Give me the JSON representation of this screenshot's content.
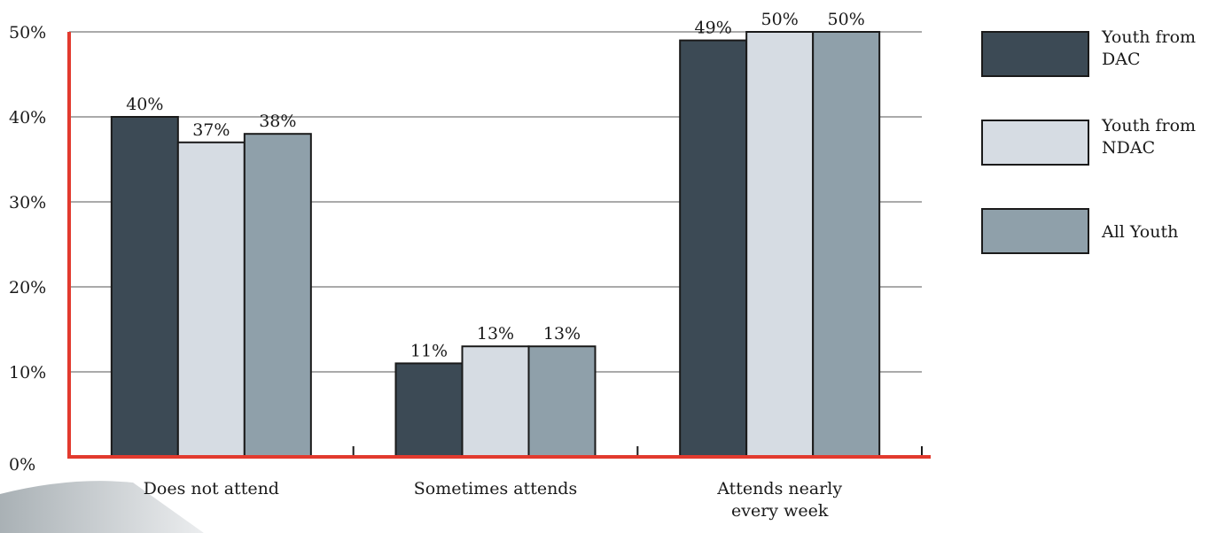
{
  "chart_data": {
    "type": "bar",
    "categories": [
      [
        "Does not attend"
      ],
      [
        "Sometimes attends"
      ],
      [
        "Attends nearly",
        "every week"
      ]
    ],
    "series": [
      {
        "name": [
          "Youth from",
          "DAC"
        ],
        "values": [
          40,
          11,
          49
        ],
        "labels": [
          "40%",
          "11%",
          "49%"
        ],
        "color": "#3c4a55"
      },
      {
        "name": [
          "Youth from",
          "NDAC"
        ],
        "values": [
          37,
          13,
          50
        ],
        "labels": [
          "37%",
          "13%",
          "50%"
        ],
        "color": "#d6dce3"
      },
      {
        "name": [
          "All Youth"
        ],
        "values": [
          38,
          13,
          50
        ],
        "labels": [
          "38%",
          "13%",
          "50%"
        ],
        "color": "#8fa0aa"
      }
    ],
    "yticks": [
      {
        "value": 0,
        "label": "0%"
      },
      {
        "value": 10,
        "label": "10%"
      },
      {
        "value": 20,
        "label": "20%"
      },
      {
        "value": 30,
        "label": "30%"
      },
      {
        "value": 40,
        "label": "40%"
      },
      {
        "value": 50,
        "label": "50%"
      }
    ],
    "ylim": [
      0,
      50
    ],
    "grid": true,
    "legend": "right",
    "axis_color": "#e23a2e",
    "grid_color": "#555555"
  }
}
